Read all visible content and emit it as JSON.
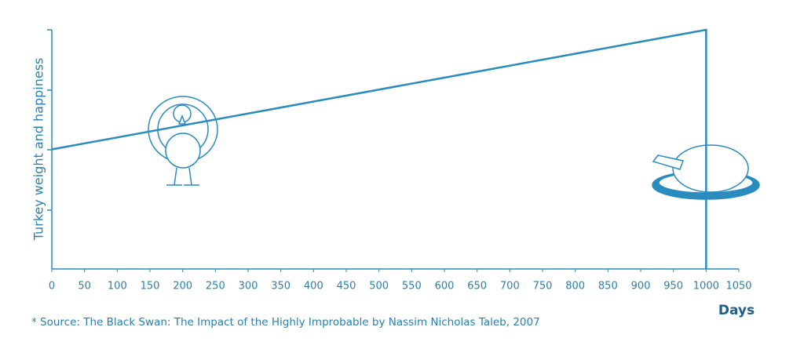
{
  "chart_data": {
    "type": "line",
    "x_label": "Days",
    "y_label": "Turkey weight and happiness",
    "source": "* Source: The Black Swan: The Impact of the Highly Improbable by Nassim Nicholas Taleb, 2007",
    "x": [
      0,
      1000,
      1000
    ],
    "series": [
      {
        "color": "#2a8bbf",
        "values": [
          2,
          4,
          0
        ]
      }
    ],
    "xlim": [
      0,
      1050
    ],
    "ylim": [
      0,
      4
    ],
    "xticks": [
      0,
      50,
      100,
      150,
      200,
      250,
      300,
      350,
      400,
      450,
      500,
      550,
      600,
      650,
      700,
      750,
      800,
      850,
      900,
      950,
      1000,
      1050
    ]
  }
}
